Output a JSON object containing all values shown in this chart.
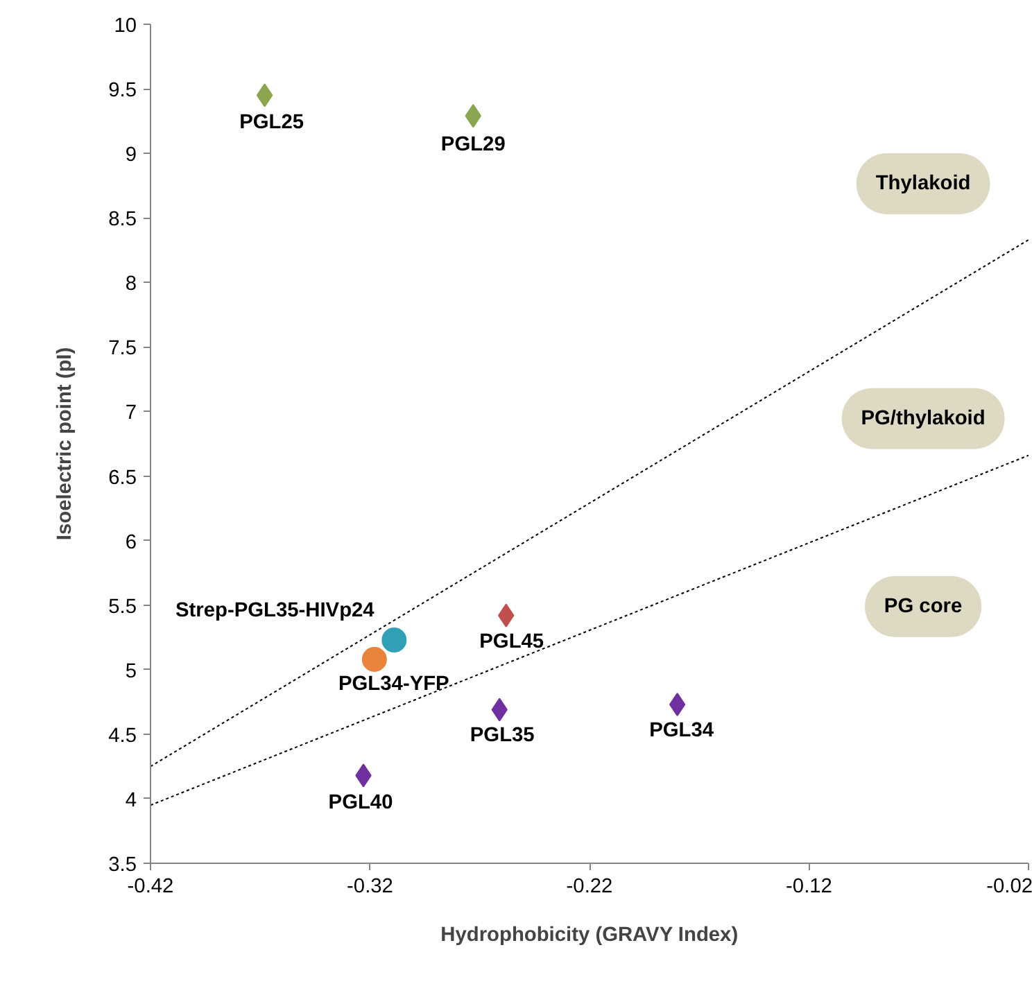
{
  "chart_data": {
    "type": "scatter",
    "xlabel": "Hydrophobicity (GRAVY Index)",
    "ylabel": "Isoelectric point (pI)",
    "xlim": [
      -0.42,
      -0.02
    ],
    "xticks": [
      -0.42,
      -0.32,
      -0.22,
      -0.12,
      -0.02
    ],
    "ylim": [
      3.5,
      10
    ],
    "yticks": [
      3.5,
      4,
      4.5,
      5,
      5.5,
      6,
      6.5,
      7,
      7.5,
      8,
      8.5,
      9,
      9.5,
      10
    ],
    "grid": false,
    "series": [
      {
        "name": "PGL25",
        "color": "#8aa64e",
        "marker": "diamond",
        "x": [
          -0.368
        ],
        "values": [
          9.45
        ]
      },
      {
        "name": "PGL29",
        "color": "#8aa64e",
        "marker": "diamond",
        "x": [
          -0.273
        ],
        "values": [
          9.29
        ]
      },
      {
        "name": "PGL45",
        "color": "#c0504d",
        "marker": "diamond",
        "x": [
          -0.258
        ],
        "values": [
          5.42
        ]
      },
      {
        "name": "PGL35",
        "color": "#7030a0",
        "marker": "diamond",
        "x": [
          -0.261
        ],
        "values": [
          4.69
        ]
      },
      {
        "name": "PGL34",
        "color": "#7030a0",
        "marker": "diamond",
        "x": [
          -0.18
        ],
        "values": [
          4.73
        ]
      },
      {
        "name": "PGL40",
        "color": "#7030a0",
        "marker": "diamond",
        "x": [
          -0.323
        ],
        "values": [
          4.18
        ]
      },
      {
        "name": "Strep-PGL35-HIVp24",
        "color": "#31a0b5",
        "marker": "circle",
        "x": [
          -0.309
        ],
        "values": [
          5.23
        ]
      },
      {
        "name": "PGL34-YFP",
        "color": "#e9843a",
        "marker": "circle",
        "x": [
          -0.318
        ],
        "values": [
          5.08
        ]
      },
      {
        "type": "line",
        "color": "#000000",
        "line_style": "dotted",
        "x": [
          -0.42,
          -0.02
        ],
        "values": [
          4.25,
          8.33
        ]
      },
      {
        "type": "line",
        "color": "#000000",
        "line_style": "dotted",
        "x": [
          -0.42,
          -0.02
        ],
        "values": [
          3.95,
          6.66
        ]
      }
    ],
    "annotations": [
      "Thylakoid",
      "PG/thylakoid",
      "PG core"
    ]
  }
}
